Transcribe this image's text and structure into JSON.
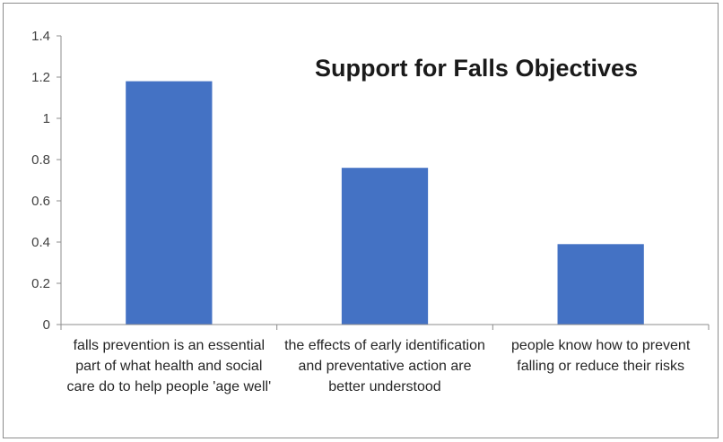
{
  "chart_data": {
    "type": "bar",
    "title": "Support for Falls Objectives",
    "categories": [
      "falls prevention is an essential part of what health and social care do to help people 'age well'",
      "the effects of early identification and preventative action are better understood",
      "people know how to prevent falling or reduce their risks"
    ],
    "values": [
      1.18,
      0.76,
      0.39
    ],
    "ylim": [
      0,
      1.4
    ],
    "yticks": [
      0,
      0.2,
      0.4,
      0.6,
      0.8,
      1,
      1.2,
      1.4
    ],
    "ytick_labels": [
      "0",
      "0.2",
      "0.4",
      "0.6",
      "0.8",
      "1",
      "1.2",
      "1.4"
    ],
    "xlabel": "",
    "ylabel": "",
    "grid": false,
    "legend": "none",
    "bar_color": "#4472c4"
  }
}
